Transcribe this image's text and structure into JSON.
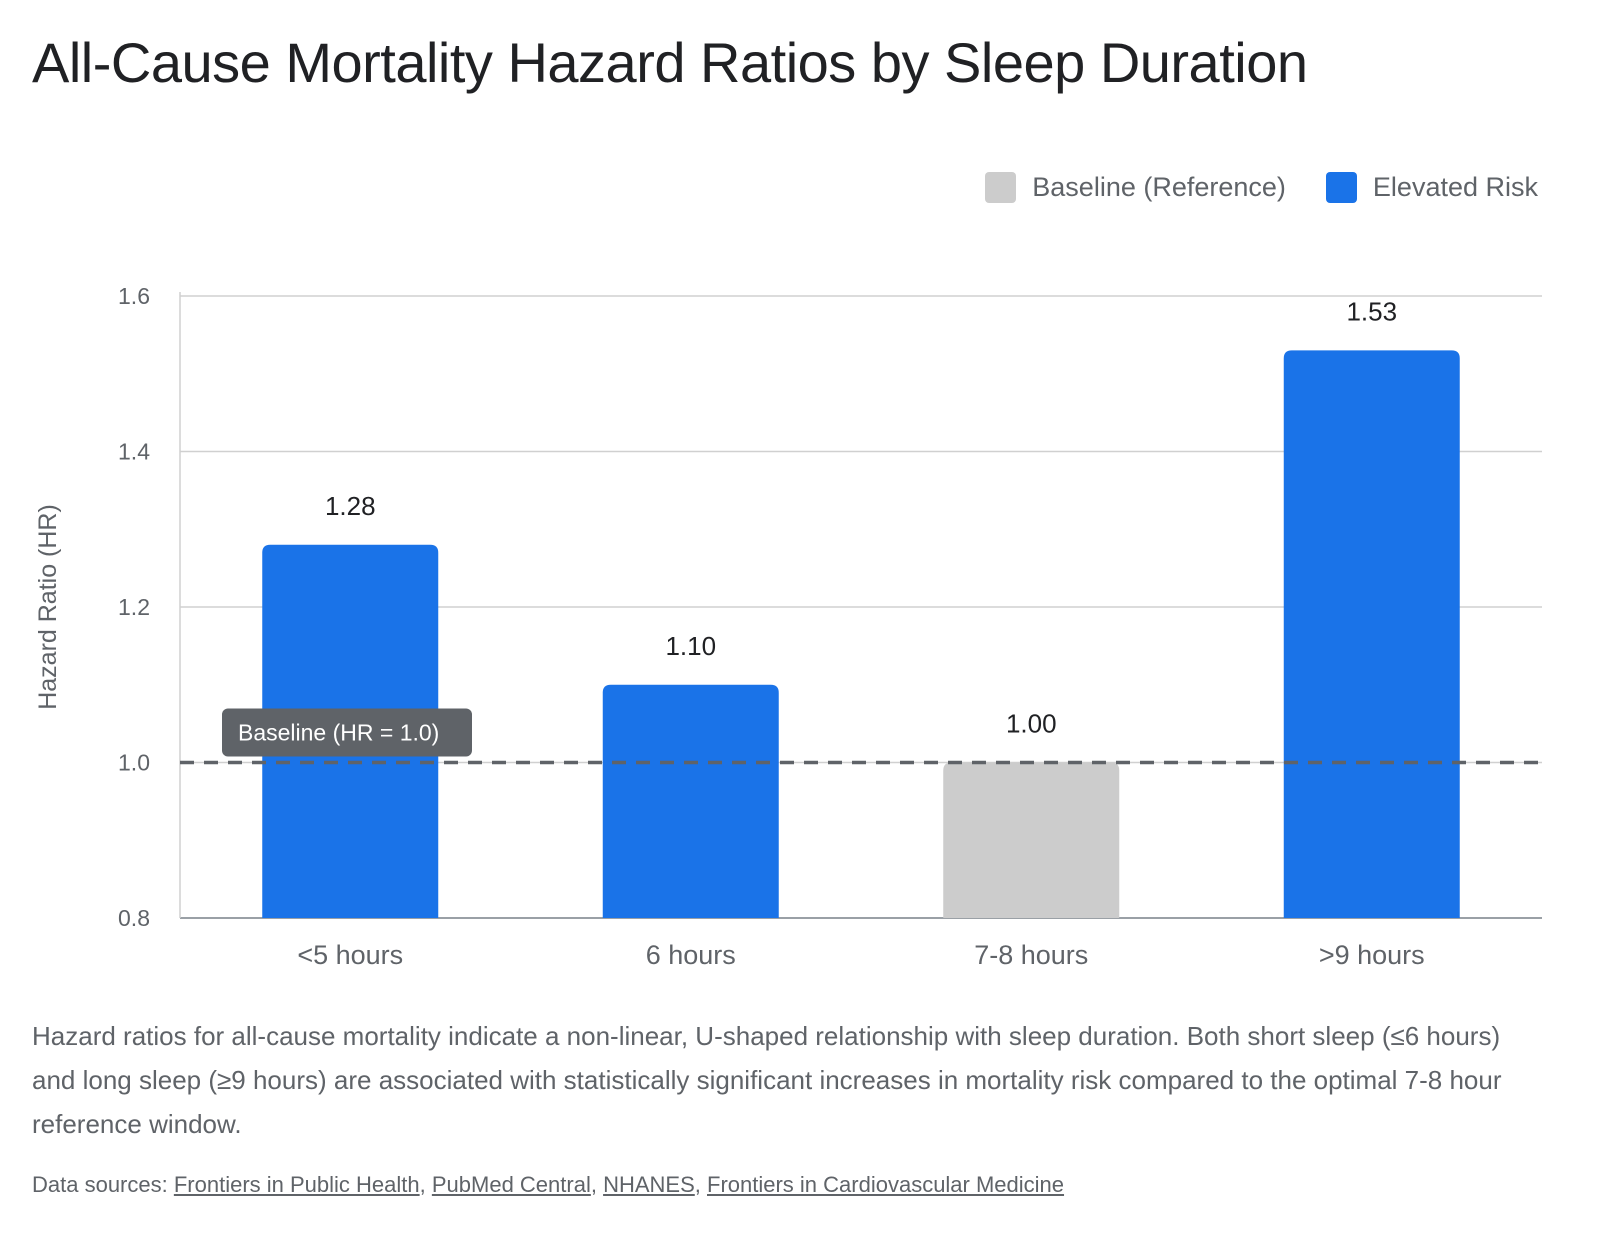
{
  "title": "All-Cause Mortality Hazard Ratios by Sleep Duration",
  "legend": [
    {
      "label": "Baseline (Reference)",
      "color": "#cccccc"
    },
    {
      "label": "Elevated Risk",
      "color": "#1a73e8"
    }
  ],
  "chart_data": {
    "type": "bar",
    "categories": [
      "<5 hours",
      "6 hours",
      "7-8 hours",
      ">9 hours"
    ],
    "values": [
      1.28,
      1.1,
      1.0,
      1.53
    ],
    "value_labels": [
      "1.28",
      "1.10",
      "1.00",
      "1.53"
    ],
    "bar_groups": [
      "Elevated Risk",
      "Elevated Risk",
      "Baseline (Reference)",
      "Elevated Risk"
    ],
    "ylabel": "Hazard Ratio (HR)",
    "xlabel": "",
    "ylim": [
      0.8,
      1.6
    ],
    "yticks": [
      0.8,
      1.0,
      1.2,
      1.4,
      1.6
    ],
    "ytick_labels": [
      "0.8",
      "1.0",
      "1.2",
      "1.4",
      "1.6"
    ],
    "grid": true,
    "legend_position": "top-right",
    "reference_line": {
      "value": 1.0,
      "label": "Baseline (HR = 1.0)",
      "style": "dashed"
    }
  },
  "caption": "Hazard ratios for all-cause mortality indicate a non-linear, U-shaped relationship with sleep duration. Both short sleep (≤6 hours) and long sleep (≥9 hours) are associated with statistically significant increases in mortality risk compared to the optimal 7-8 hour reference window.",
  "sources": {
    "prefix": "Data sources: ",
    "links": [
      "Frontiers in Public Health",
      "PubMed Central",
      "NHANES",
      "Frontiers in Cardiovascular Medicine"
    ],
    "separator": ", "
  }
}
